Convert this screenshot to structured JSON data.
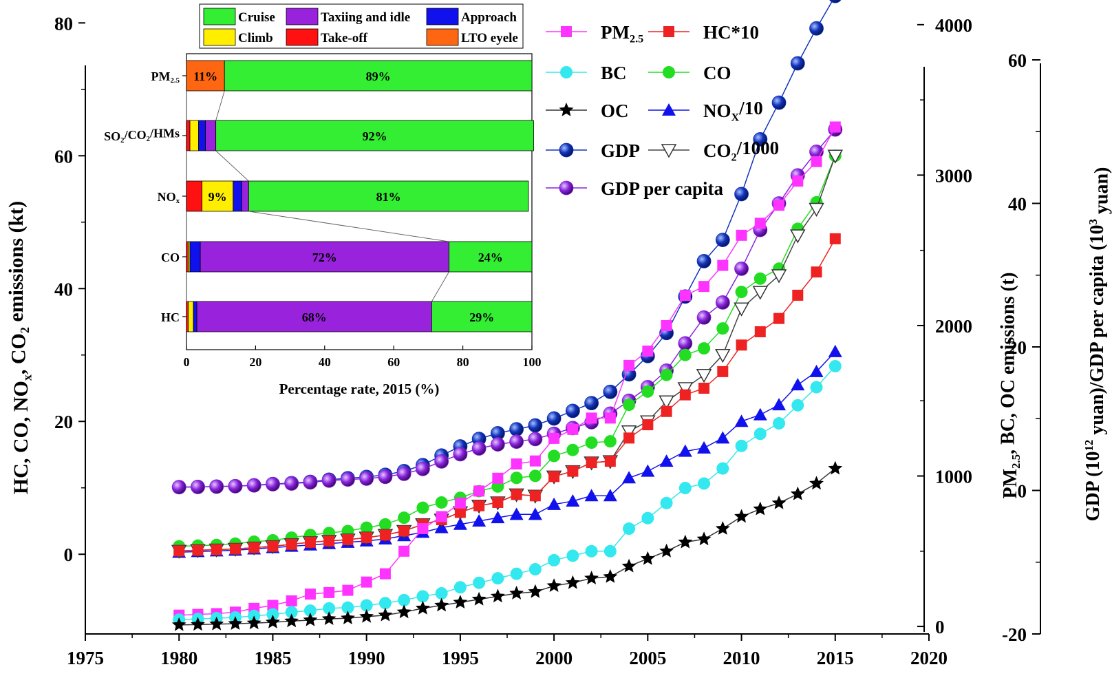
{
  "chart_data": [
    {
      "type": "line",
      "xlabel": "",
      "x_ticks": [
        "1975",
        "1980",
        "1985",
        "1990",
        "1995",
        "2000",
        "2005",
        "2010",
        "2015",
        "2020"
      ],
      "xlim": [
        1975,
        2020
      ],
      "y_left": {
        "label_parts": [
          "HC, CO, NO",
          "x",
          ", CO",
          "2",
          " emissions (kt)"
        ],
        "ticks": [
          "0",
          "20",
          "40",
          "60",
          "80"
        ],
        "ylim": [
          -12,
          82
        ]
      },
      "y_right1": {
        "label_parts": [
          "PM",
          "2.5",
          ", BC, OC emissions (t)"
        ],
        "ticks": [
          "0",
          "1000",
          "2000",
          "3000",
          "4000"
        ],
        "ylim": [
          -50,
          4100
        ]
      },
      "y_right2": {
        "label_parts": [
          "GDP (10",
          "12",
          " yuan)/GDP per capita (10",
          "3",
          " yuan)"
        ],
        "ticks": [
          "-20",
          "0",
          "20",
          "40",
          "60"
        ],
        "ylim": [
          -20,
          67
        ]
      },
      "years": [
        1980,
        1981,
        1982,
        1983,
        1984,
        1985,
        1986,
        1987,
        1988,
        1989,
        1990,
        1991,
        1992,
        1993,
        1994,
        1995,
        1996,
        1997,
        1998,
        1999,
        2000,
        2001,
        2002,
        2003,
        2004,
        2005,
        2006,
        2007,
        2008,
        2009,
        2010,
        2011,
        2012,
        2013,
        2014,
        2015
      ],
      "series": [
        {
          "name": "PM",
          "name_sub": "2.5",
          "axis": "right1",
          "color": "#ff33ff",
          "marker": "square",
          "values": [
            75,
            80,
            85,
            95,
            120,
            140,
            170,
            215,
            225,
            240,
            295,
            350,
            500,
            650,
            730,
            820,
            900,
            985,
            1080,
            1100,
            1250,
            1310,
            1385,
            1385,
            1735,
            1830,
            2000,
            2200,
            2260,
            2400,
            2600,
            2680,
            2800,
            2960,
            3090,
            3320
          ]
        },
        {
          "name": "HC*10",
          "axis": "left",
          "color": "#ee2222",
          "marker": "square",
          "values": [
            0.5,
            0.6,
            0.7,
            0.8,
            1.0,
            1.2,
            1.5,
            1.8,
            2.0,
            2.2,
            2.5,
            2.9,
            3.5,
            4.5,
            5.2,
            6.3,
            7.3,
            7.8,
            9.0,
            8.8,
            11.7,
            12.5,
            13.8,
            14.0,
            17.5,
            19.5,
            21.5,
            24.0,
            25.0,
            27.5,
            31.5,
            33.5,
            35.5,
            39.0,
            42.5,
            47.5
          ]
        },
        {
          "name": "BC",
          "axis": "right1",
          "color": "#33e8ee",
          "marker": "circle",
          "values": [
            45,
            50,
            55,
            60,
            70,
            80,
            95,
            105,
            120,
            125,
            140,
            155,
            175,
            200,
            220,
            260,
            290,
            320,
            350,
            380,
            440,
            470,
            500,
            500,
            650,
            720,
            820,
            920,
            950,
            1050,
            1200,
            1280,
            1350,
            1470,
            1590,
            1730
          ]
        },
        {
          "name": "CO",
          "axis": "left",
          "color": "#22dd22",
          "marker": "circle",
          "values": [
            1.2,
            1.3,
            1.4,
            1.6,
            1.9,
            2.1,
            2.5,
            2.9,
            3.2,
            3.5,
            4.0,
            4.5,
            5.5,
            7.0,
            7.8,
            8.5,
            9.5,
            10.2,
            11.5,
            11.8,
            14.8,
            15.7,
            16.8,
            17.0,
            22.5,
            24.5,
            27.0,
            30.0,
            31.0,
            34.0,
            39.5,
            41.5,
            43.0,
            49.0,
            53.0,
            60.0
          ]
        },
        {
          "name": "OC",
          "axis": "right1",
          "color": "#000000",
          "marker": "star",
          "values": [
            10,
            12,
            15,
            18,
            22,
            28,
            35,
            42,
            50,
            55,
            65,
            75,
            95,
            120,
            140,
            160,
            180,
            200,
            220,
            230,
            270,
            290,
            320,
            330,
            400,
            450,
            500,
            560,
            580,
            650,
            730,
            780,
            820,
            880,
            950,
            1050
          ]
        },
        {
          "name": "NO",
          "name_sub": "X",
          "name_suffix": "/10",
          "axis": "left",
          "color": "#1111ee",
          "marker": "triangle",
          "values": [
            0.3,
            0.4,
            0.5,
            0.6,
            0.8,
            1.0,
            1.2,
            1.4,
            1.6,
            1.8,
            2.0,
            2.3,
            2.8,
            3.3,
            4.0,
            4.5,
            5.0,
            5.5,
            6.0,
            6.0,
            7.5,
            8.0,
            8.8,
            8.8,
            11.5,
            12.5,
            14.0,
            15.5,
            16.0,
            17.5,
            20.0,
            21.0,
            22.5,
            25.5,
            27.5,
            30.5
          ]
        },
        {
          "name": "GDP",
          "axis": "right2",
          "color": "#1133bb",
          "marker": "sphere",
          "values": [
            0.45,
            0.49,
            0.54,
            0.6,
            0.72,
            0.9,
            1.02,
            1.2,
            1.5,
            1.7,
            1.88,
            2.18,
            2.69,
            3.53,
            4.86,
            6.13,
            7.18,
            7.97,
            8.52,
            9.06,
            10.03,
            11.09,
            12.17,
            13.74,
            16.18,
            18.73,
            21.94,
            27.02,
            31.95,
            34.91,
            41.3,
            48.93,
            54.04,
            59.52,
            64.39,
            68.91
          ]
        },
        {
          "name": "CO",
          "name_sub": "2",
          "name_suffix": "/1000",
          "axis": "left",
          "color": "#444444",
          "marker": "triangle-down-open",
          "values": [
            0.5,
            0.6,
            0.7,
            0.8,
            1.0,
            1.2,
            1.5,
            1.8,
            2.0,
            2.2,
            2.5,
            2.9,
            3.5,
            4.5,
            5.2,
            6.3,
            7.3,
            7.8,
            9.0,
            8.8,
            11.7,
            12.5,
            13.8,
            14.0,
            18.5,
            20.0,
            23.0,
            25.0,
            27.0,
            30.0,
            37.0,
            39.5,
            42.0,
            48.0,
            52.0,
            60.0
          ]
        },
        {
          "name": "GDP per capita",
          "axis": "right2",
          "color": "#8822dd",
          "marker": "sphere",
          "values": [
            0.47,
            0.49,
            0.53,
            0.59,
            0.7,
            0.86,
            0.96,
            1.12,
            1.37,
            1.52,
            1.64,
            1.89,
            2.31,
            2.99,
            4.04,
            5.05,
            5.85,
            6.42,
            6.8,
            7.16,
            7.9,
            8.7,
            9.5,
            10.7,
            12.5,
            14.4,
            16.7,
            20.5,
            24.1,
            26.2,
            30.9,
            36.3,
            40.0,
            43.9,
            47.2,
            50.3
          ]
        }
      ]
    },
    {
      "type": "bar",
      "orientation": "horizontal",
      "stacked": true,
      "xlabel": "Percentage rate, 2015 (%)",
      "x_ticks": [
        "0",
        "20",
        "40",
        "60",
        "80",
        "100"
      ],
      "xlim": [
        0,
        100
      ],
      "categories": [
        {
          "parts": [
            "PM",
            "2.5"
          ]
        },
        {
          "parts": [
            "SO",
            "2",
            "/CO",
            "2",
            "/HMs"
          ]
        },
        {
          "parts": [
            "NO",
            "x"
          ]
        },
        {
          "parts": [
            "CO"
          ]
        },
        {
          "parts": [
            "HC"
          ]
        }
      ],
      "series": [
        {
          "name": "Take-off",
          "color": "#ff1111",
          "values": [
            0,
            1,
            4.5,
            0.5,
            0.5
          ]
        },
        {
          "name": "Climb",
          "color": "#ffee00",
          "values": [
            0,
            2.5,
            9,
            0.5,
            1.5
          ]
        },
        {
          "name": "Approach",
          "color": "#1111ee",
          "values": [
            0,
            2,
            2.5,
            3,
            1
          ]
        },
        {
          "name": "Taxiing and idle",
          "color": "#9922dd",
          "values": [
            0,
            3,
            2,
            72,
            68
          ]
        },
        {
          "name": "LTO cycle",
          "color": "#ff6611",
          "values": [
            11,
            0,
            0,
            0,
            0
          ]
        },
        {
          "name": "Cruise",
          "color": "#33ee33",
          "values": [
            89,
            92,
            81,
            24,
            29
          ]
        }
      ],
      "data_labels": [
        {
          "row": 0,
          "series": "LTO cycle",
          "text": "11%"
        },
        {
          "row": 0,
          "series": "Cruise",
          "text": "89%"
        },
        {
          "row": 1,
          "series": "Cruise",
          "text": "92%"
        },
        {
          "row": 2,
          "series": "Climb",
          "text": "9%"
        },
        {
          "row": 2,
          "series": "Cruise",
          "text": "81%"
        },
        {
          "row": 3,
          "series": "Taxiing and idle",
          "text": "72%"
        },
        {
          "row": 3,
          "series": "Cruise",
          "text": "24%"
        },
        {
          "row": 4,
          "series": "Taxiing and idle",
          "text": "68%"
        },
        {
          "row": 4,
          "series": "Cruise",
          "text": "29%"
        }
      ],
      "legend": [
        {
          "name": "Cruise",
          "color": "#33ee33"
        },
        {
          "name": "Taxiing and idle",
          "color": "#9922dd"
        },
        {
          "name": "Approach",
          "color": "#1111ee"
        },
        {
          "name": "Climb",
          "color": "#ffee00"
        },
        {
          "name": "Take-off",
          "color": "#ff1111"
        },
        {
          "name": "LTO eyele",
          "color": "#ff6611"
        }
      ],
      "legend_position": "top"
    }
  ]
}
